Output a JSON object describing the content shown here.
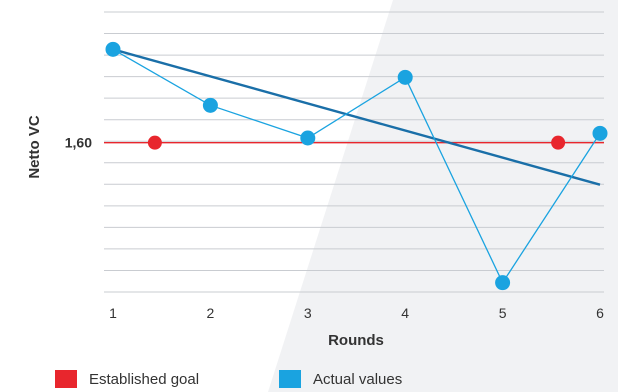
{
  "chart_data": {
    "type": "line",
    "xlabel": "Rounds",
    "ylabel": "Netto VC",
    "x": [
      1,
      2,
      3,
      4,
      5,
      6
    ],
    "xlim": [
      1,
      6
    ],
    "ylim": [
      1.28,
      1.88
    ],
    "grid": true,
    "y_ticks": [
      {
        "value": 1.6,
        "label": "1,60"
      }
    ],
    "series": [
      {
        "name": "Actual values",
        "color": "#1aa3e0",
        "x": [
          1,
          2,
          3,
          4,
          5,
          6
        ],
        "values": [
          1.8,
          1.68,
          1.61,
          1.74,
          1.3,
          1.62
        ]
      },
      {
        "name": "Established goal",
        "color": "#e8262d",
        "value": 1.6,
        "marker_x": [
          1.43,
          5.57
        ]
      }
    ],
    "trendline": {
      "color": "#1a6fa8",
      "x": [
        1,
        6
      ],
      "values": [
        1.8,
        1.51
      ]
    },
    "legend": [
      {
        "label": "Established goal",
        "color": "#e8262d"
      },
      {
        "label": "Actual values",
        "color": "#1aa3e0"
      }
    ],
    "legend_position": "bottom"
  }
}
